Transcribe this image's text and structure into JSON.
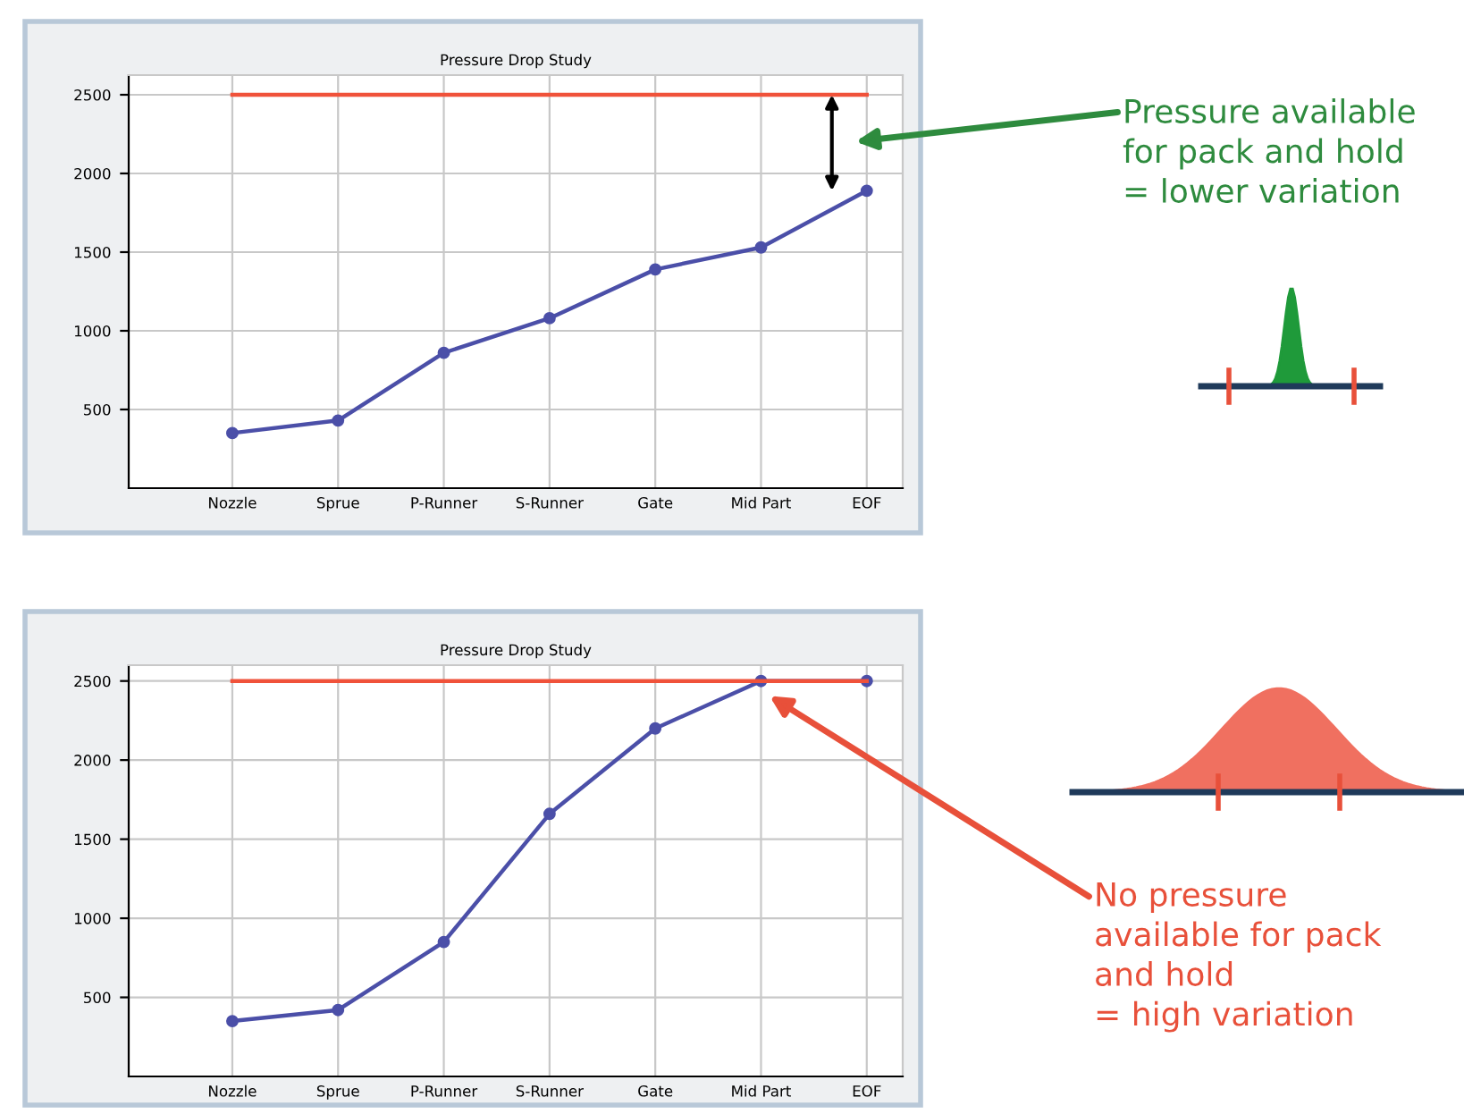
{
  "chart_data": [
    {
      "type": "line",
      "title": "Pressure Drop Study",
      "categories": [
        "Nozzle",
        "Sprue",
        "P-Runner",
        "S-Runner",
        "Gate",
        "Mid Part",
        "EOF"
      ],
      "series": [
        {
          "color": "#4b4fa8",
          "marker": "circle",
          "values": [
            350,
            430,
            860,
            1080,
            1390,
            1530,
            1890
          ]
        },
        {
          "color": "#f0523a",
          "marker": "none",
          "values": [
            2500,
            2500,
            2500,
            2500,
            2500,
            2500,
            2500
          ]
        }
      ],
      "ylim": [
        0,
        2625
      ],
      "yticks": [
        500,
        1000,
        1500,
        2000,
        2500
      ],
      "grid": true,
      "annotations": [
        "Pressure available\nfor pack and hold\n= lower variation"
      ]
    },
    {
      "type": "line",
      "title": "Pressure Drop Study",
      "categories": [
        "Nozzle",
        "Sprue",
        "P-Runner",
        "S-Runner",
        "Gate",
        "Mid Part",
        "EOF"
      ],
      "series": [
        {
          "color": "#4b4fa8",
          "marker": "circle",
          "values": [
            350,
            420,
            850,
            1660,
            2200,
            2500,
            2500
          ]
        },
        {
          "color": "#f0523a",
          "marker": "none",
          "values": [
            2500,
            2500,
            2500,
            2500,
            2500,
            2500,
            2500
          ]
        }
      ],
      "ylim": [
        0,
        2600
      ],
      "yticks": [
        500,
        1000,
        1500,
        2000,
        2500
      ],
      "grid": true,
      "annotations": [
        "No pressure\navailable for pack\nand hold\n= high variation"
      ]
    }
  ]
}
